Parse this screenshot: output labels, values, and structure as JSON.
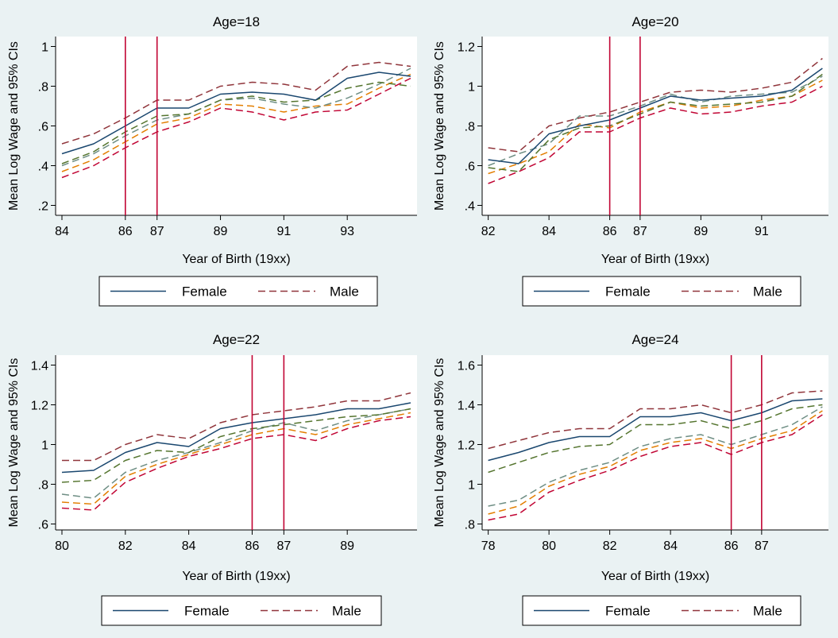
{
  "colors": {
    "background": "#eaf2f3",
    "plot_area": "#ffffff",
    "female": "#1a476f",
    "male": "#90353b",
    "female_ci": "#55752f",
    "male_ci_upper": "#6e8e84",
    "male_ci_lower": "#e37e00",
    "female_ci_lower": "#c10534",
    "reference_line": "#c10534"
  },
  "legend_labels": [
    "Female",
    "Male"
  ],
  "chart_data": [
    {
      "type": "line",
      "title": "Age=18",
      "xlabel": "Year of Birth (19xx)",
      "ylabel": "Mean Log Wage and 95% CIs",
      "x_ticks": [
        "84",
        "86",
        "87",
        "89",
        "91",
        "93"
      ],
      "y_ticks": [
        "1",
        ".8",
        ".6",
        ".4",
        ".2"
      ],
      "xlim": [
        83.8,
        95.2
      ],
      "ylim": [
        0.15,
        1.05
      ],
      "vlines": [
        86,
        87
      ],
      "legend": "bottom",
      "grid": false,
      "x": [
        84,
        85,
        86,
        87,
        88,
        89,
        90,
        91,
        92,
        93,
        94,
        95
      ],
      "series": [
        {
          "name": "Female",
          "values": [
            0.46,
            0.51,
            0.6,
            0.69,
            0.69,
            0.76,
            0.77,
            0.76,
            0.73,
            0.84,
            0.87,
            0.85
          ]
        },
        {
          "name": "Male",
          "values": [
            0.51,
            0.56,
            0.64,
            0.73,
            0.73,
            0.8,
            0.82,
            0.81,
            0.78,
            0.9,
            0.92,
            0.9
          ]
        },
        {
          "values": [
            0.41,
            0.47,
            0.57,
            0.65,
            0.66,
            0.73,
            0.75,
            0.72,
            0.73,
            0.79,
            0.82,
            0.8
          ]
        },
        {
          "values": [
            0.4,
            0.46,
            0.55,
            0.63,
            0.66,
            0.73,
            0.74,
            0.71,
            0.69,
            0.74,
            0.81,
            0.89
          ]
        },
        {
          "values": [
            0.37,
            0.43,
            0.52,
            0.61,
            0.64,
            0.71,
            0.7,
            0.67,
            0.7,
            0.71,
            0.79,
            0.86
          ]
        },
        {
          "values": [
            0.34,
            0.4,
            0.49,
            0.57,
            0.62,
            0.69,
            0.67,
            0.63,
            0.67,
            0.68,
            0.76,
            0.84
          ]
        }
      ]
    },
    {
      "type": "line",
      "title": "Age=20",
      "xlabel": "Year of Birth (19xx)",
      "ylabel": "Mean Log Wage and 95% CIs",
      "x_ticks": [
        "82",
        "84",
        "86",
        "87",
        "89",
        "91"
      ],
      "y_ticks": [
        "1.2",
        "1",
        ".8",
        ".6",
        ".4"
      ],
      "xlim": [
        81.8,
        93.2
      ],
      "ylim": [
        0.35,
        1.25
      ],
      "vlines": [
        86,
        87
      ],
      "legend": "bottom",
      "grid": false,
      "x": [
        82,
        83,
        84,
        85,
        86,
        87,
        88,
        89,
        90,
        91,
        92,
        93
      ],
      "series": [
        {
          "name": "Female",
          "values": [
            0.63,
            0.61,
            0.76,
            0.8,
            0.83,
            0.89,
            0.95,
            0.93,
            0.94,
            0.95,
            0.98,
            1.09
          ]
        },
        {
          "name": "Male",
          "values": [
            0.69,
            0.67,
            0.8,
            0.84,
            0.87,
            0.92,
            0.97,
            0.98,
            0.97,
            0.99,
            1.02,
            1.14
          ]
        },
        {
          "values": [
            0.59,
            0.57,
            0.73,
            0.79,
            0.8,
            0.86,
            0.92,
            0.9,
            0.91,
            0.92,
            0.95,
            1.06
          ]
        },
        {
          "values": [
            0.6,
            0.66,
            0.71,
            0.85,
            0.85,
            0.9,
            0.96,
            0.92,
            0.95,
            0.96,
            0.97,
            1.05
          ]
        },
        {
          "values": [
            0.56,
            0.61,
            0.67,
            0.81,
            0.79,
            0.87,
            0.92,
            0.89,
            0.9,
            0.93,
            0.95,
            1.03
          ]
        },
        {
          "values": [
            0.51,
            0.57,
            0.64,
            0.77,
            0.77,
            0.84,
            0.89,
            0.86,
            0.87,
            0.9,
            0.92,
            1.0
          ]
        }
      ]
    },
    {
      "type": "line",
      "title": "Age=22",
      "xlabel": "Year of Birth (19xx)",
      "ylabel": "Mean Log Wage and 95% CIs",
      "x_ticks": [
        "80",
        "82",
        "84",
        "86",
        "87",
        "89"
      ],
      "y_ticks": [
        "1.4",
        "1.2",
        "1",
        ".8",
        ".6"
      ],
      "xlim": [
        79.8,
        91.2
      ],
      "ylim": [
        0.57,
        1.45
      ],
      "vlines": [
        86,
        87
      ],
      "legend": "bottom",
      "grid": false,
      "x": [
        80,
        81,
        82,
        83,
        84,
        85,
        86,
        87,
        88,
        89,
        90,
        91
      ],
      "series": [
        {
          "name": "Female",
          "values": [
            0.86,
            0.87,
            0.96,
            1.01,
            0.99,
            1.08,
            1.11,
            1.13,
            1.15,
            1.18,
            1.18,
            1.21
          ]
        },
        {
          "name": "Male",
          "values": [
            0.92,
            0.92,
            1.0,
            1.05,
            1.03,
            1.11,
            1.15,
            1.17,
            1.19,
            1.22,
            1.22,
            1.26
          ]
        },
        {
          "values": [
            0.81,
            0.82,
            0.92,
            0.97,
            0.96,
            1.04,
            1.08,
            1.1,
            1.12,
            1.14,
            1.15,
            1.18
          ]
        },
        {
          "values": [
            0.75,
            0.73,
            0.86,
            0.92,
            0.96,
            1.01,
            1.07,
            1.11,
            1.07,
            1.12,
            1.15,
            1.18
          ]
        },
        {
          "values": [
            0.71,
            0.7,
            0.84,
            0.9,
            0.95,
            1.0,
            1.05,
            1.08,
            1.05,
            1.1,
            1.13,
            1.16
          ]
        },
        {
          "values": [
            0.68,
            0.67,
            0.81,
            0.88,
            0.94,
            0.98,
            1.03,
            1.05,
            1.02,
            1.08,
            1.12,
            1.14
          ]
        }
      ]
    },
    {
      "type": "line",
      "title": "Age=24",
      "xlabel": "Year of Birth (19xx)",
      "ylabel": "Mean Log Wage and 95% CIs",
      "x_ticks": [
        "78",
        "80",
        "82",
        "84",
        "86",
        "87"
      ],
      "y_ticks": [
        "1.6",
        "1.4",
        "1.2",
        "1",
        ".8"
      ],
      "xlim": [
        77.8,
        89.2
      ],
      "ylim": [
        0.77,
        1.65
      ],
      "vlines": [
        86,
        87
      ],
      "legend": "bottom",
      "grid": false,
      "x": [
        78,
        79,
        80,
        81,
        82,
        83,
        84,
        85,
        86,
        87,
        88,
        89
      ],
      "series": [
        {
          "name": "Female",
          "values": [
            1.12,
            1.16,
            1.21,
            1.24,
            1.24,
            1.34,
            1.34,
            1.36,
            1.32,
            1.36,
            1.42,
            1.43
          ]
        },
        {
          "name": "Male",
          "values": [
            1.18,
            1.22,
            1.26,
            1.28,
            1.28,
            1.38,
            1.38,
            1.4,
            1.36,
            1.4,
            1.46,
            1.47
          ]
        },
        {
          "values": [
            1.06,
            1.11,
            1.16,
            1.19,
            1.2,
            1.3,
            1.3,
            1.32,
            1.28,
            1.32,
            1.38,
            1.4
          ]
        },
        {
          "values": [
            0.89,
            0.92,
            1.01,
            1.07,
            1.11,
            1.19,
            1.23,
            1.25,
            1.2,
            1.25,
            1.3,
            1.39
          ]
        },
        {
          "values": [
            0.85,
            0.89,
            0.99,
            1.05,
            1.09,
            1.17,
            1.21,
            1.23,
            1.18,
            1.23,
            1.27,
            1.37
          ]
        },
        {
          "values": [
            0.82,
            0.85,
            0.96,
            1.02,
            1.07,
            1.14,
            1.19,
            1.21,
            1.15,
            1.21,
            1.25,
            1.35
          ]
        }
      ]
    }
  ]
}
